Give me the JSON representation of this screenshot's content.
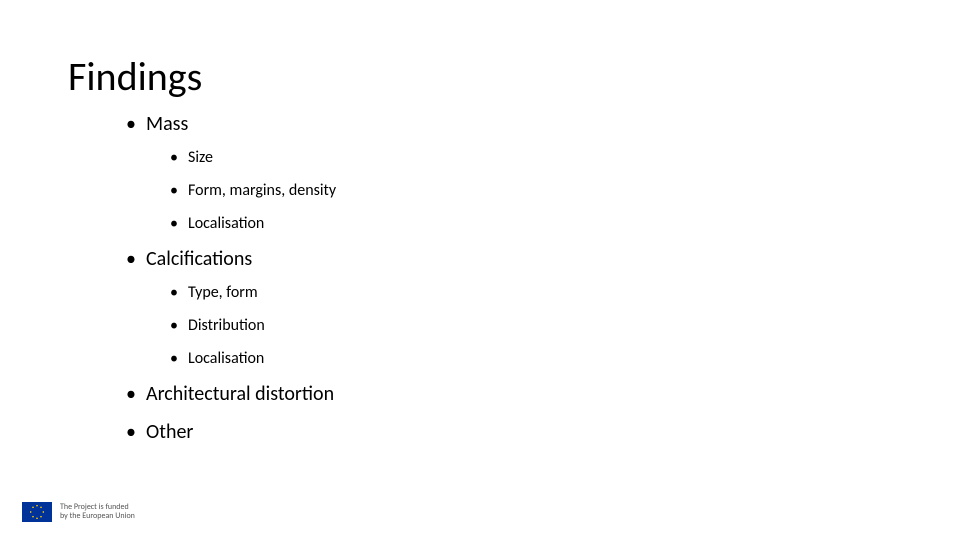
{
  "title": "Findings",
  "bullets": {
    "item0": {
      "label": "Mass",
      "sub0": "Size",
      "sub1": "Form, margins, density",
      "sub2": "Localisation"
    },
    "item1": {
      "label": "Calcifications",
      "sub0": "Type, form",
      "sub1": "Distribution",
      "sub2": "Localisation"
    },
    "item2": {
      "label": "Architectural distortion"
    },
    "item3": {
      "label": "Other"
    }
  },
  "footer": {
    "line1": "The Project is funded",
    "line2": "by the European Union"
  },
  "colors": {
    "background": "#ffffff",
    "text": "#000000",
    "footer_text": "#555555",
    "flag_bg": "#003399",
    "flag_star": "#ffcc00"
  },
  "typography": {
    "title_fontsize": 40,
    "level1_fontsize": 20,
    "level2_fontsize": 16,
    "footer_fontsize": 8,
    "font_family": "Calibri"
  }
}
